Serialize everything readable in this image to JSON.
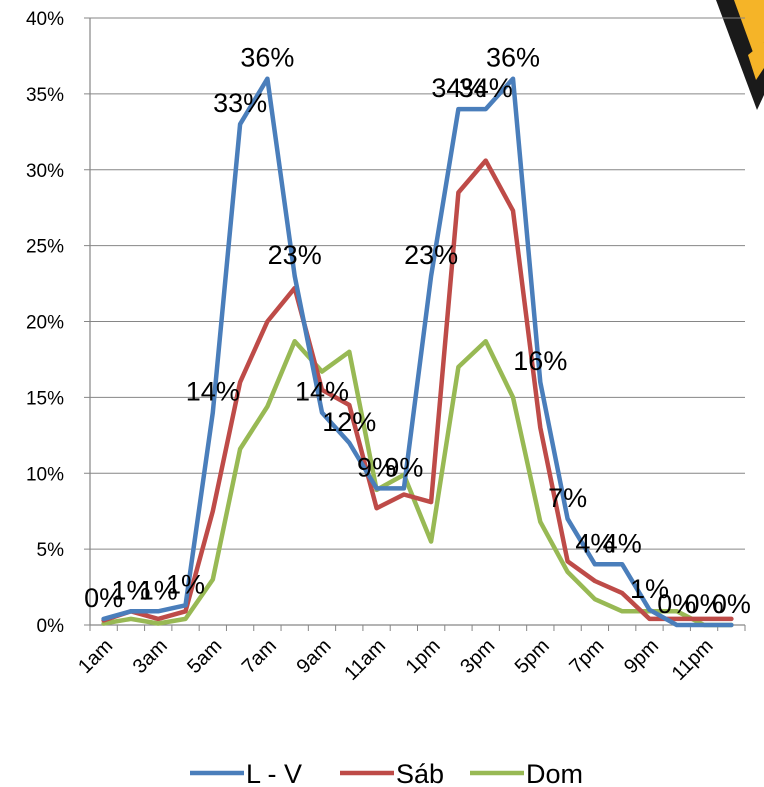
{
  "chart_data": {
    "type": "line",
    "title": "",
    "xlabel": "",
    "ylabel": "",
    "x": [
      "1am",
      "2am",
      "3am",
      "4am",
      "5am",
      "6am",
      "7am",
      "8am",
      "9am",
      "10am",
      "11am",
      "12pm",
      "1pm",
      "2pm",
      "3pm",
      "4pm",
      "5pm",
      "6pm",
      "7pm",
      "8pm",
      "9pm",
      "10pm",
      "11pm",
      "12am"
    ],
    "x_tick_labels": [
      "1am",
      "3am",
      "5am",
      "7am",
      "9am",
      "11am",
      "1pm",
      "3pm",
      "5pm",
      "7pm",
      "9pm",
      "11pm"
    ],
    "ylim": [
      0,
      40
    ],
    "y_tick_labels": [
      "0%",
      "5%",
      "10%",
      "15%",
      "20%",
      "25%",
      "30%",
      "35%",
      "40%"
    ],
    "grid": "horizontal",
    "legend_position": "bottom",
    "series": [
      {
        "name": "L - V",
        "color": "#4a7ebb",
        "values": [
          0.4,
          0.9,
          0.9,
          1.3,
          14,
          33,
          36,
          23,
          14,
          12,
          9,
          9,
          23,
          34,
          34,
          36,
          16,
          7,
          4,
          4,
          1,
          0,
          0,
          0
        ],
        "labels": [
          "0%",
          "1%",
          "1%",
          "1%",
          "14%",
          "33%",
          "36%",
          "23%",
          "14%",
          "12%",
          "9%",
          "9%",
          "23%",
          "34%",
          "34%",
          "36%",
          "16%",
          "7%",
          "4%",
          "4%",
          "1%",
          "0%",
          "0%",
          "0%"
        ]
      },
      {
        "name": "Sáb",
        "color": "#be4b48",
        "values": [
          0.3,
          0.9,
          0.4,
          0.9,
          7.5,
          16,
          20,
          22.2,
          15.5,
          14.5,
          7.7,
          8.6,
          8.1,
          28.5,
          30.6,
          27.3,
          13,
          4.2,
          2.9,
          2.1,
          0.4,
          0.4,
          0.4,
          0.4
        ]
      },
      {
        "name": "Dom",
        "color": "#98b954",
        "values": [
          0.1,
          0.4,
          0.1,
          0.4,
          3.0,
          11.6,
          14.4,
          18.7,
          16.7,
          18.0,
          8.9,
          9.9,
          5.5,
          17.0,
          18.7,
          15.0,
          6.8,
          3.5,
          1.7,
          0.9,
          0.9,
          0.9,
          0.0,
          0.0
        ]
      }
    ]
  }
}
